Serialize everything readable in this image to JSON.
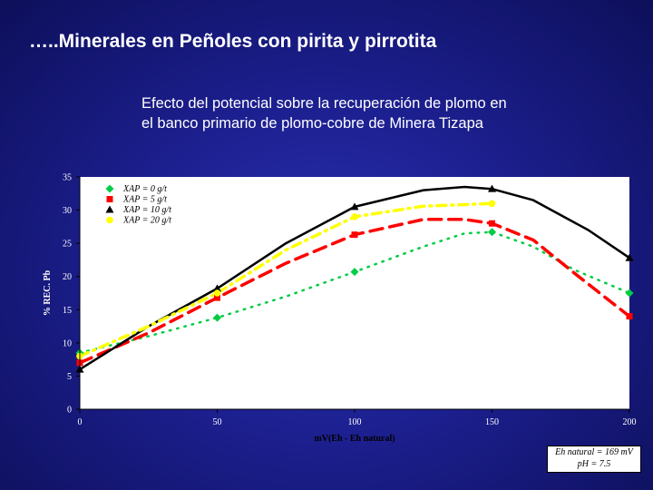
{
  "slide_title": "…..Minerales en Peñoles con pirita y pirrotita",
  "chart_data": {
    "type": "line",
    "title_lines": [
      "Efecto del potencial sobre la recuperación de plomo  en",
      "el banco primario de plomo-cobre de Minera Tizapa"
    ],
    "xlabel": "mV(Eh - Eh natural)",
    "ylabel": "% REC. Pb",
    "xlim": [
      0,
      200
    ],
    "ylim": [
      0,
      35
    ],
    "x_ticks": [
      0,
      50,
      100,
      150,
      200
    ],
    "y_ticks": [
      0,
      5,
      10,
      15,
      20,
      25,
      30,
      35
    ],
    "grid": false,
    "legend_position": "top-left",
    "series": [
      {
        "name": "XAP = 0 g/t",
        "color": "#00cc44",
        "marker": "diamond",
        "line_style": "dotted",
        "points": [
          [
            0,
            8.5
          ],
          [
            50,
            13.8
          ],
          [
            100,
            20.7
          ],
          [
            150,
            26.7
          ],
          [
            200,
            17.5
          ]
        ],
        "curve": [
          [
            0,
            8.5
          ],
          [
            25,
            11.0
          ],
          [
            50,
            13.8
          ],
          [
            75,
            17.0
          ],
          [
            100,
            20.7
          ],
          [
            125,
            24.5
          ],
          [
            140,
            26.5
          ],
          [
            150,
            26.7
          ],
          [
            165,
            24.5
          ],
          [
            180,
            21.0
          ],
          [
            200,
            17.5
          ]
        ]
      },
      {
        "name": "XAP = 5 g/t",
        "color": "#ff0000",
        "marker": "square",
        "line_style": "dashed",
        "points": [
          [
            0,
            7
          ],
          [
            50,
            16.8
          ],
          [
            100,
            26.3
          ],
          [
            150,
            28
          ],
          [
            200,
            14
          ]
        ],
        "curve": [
          [
            0,
            7
          ],
          [
            25,
            11.5
          ],
          [
            50,
            16.8
          ],
          [
            75,
            22.0
          ],
          [
            100,
            26.3
          ],
          [
            125,
            28.6
          ],
          [
            140,
            28.6
          ],
          [
            150,
            28
          ],
          [
            165,
            25.5
          ],
          [
            180,
            20.5
          ],
          [
            200,
            14
          ]
        ]
      },
      {
        "name": "XAP = 10 g/t",
        "color": "#000000",
        "marker": "triangle",
        "line_style": "solid",
        "points": [
          [
            0,
            6
          ],
          [
            50,
            18.2
          ],
          [
            100,
            30.5
          ],
          [
            150,
            33.2
          ],
          [
            200,
            22.8
          ]
        ],
        "curve": [
          [
            0,
            6
          ],
          [
            25,
            12.5
          ],
          [
            50,
            18.2
          ],
          [
            75,
            25.0
          ],
          [
            100,
            30.5
          ],
          [
            125,
            33.0
          ],
          [
            140,
            33.5
          ],
          [
            150,
            33.2
          ],
          [
            165,
            31.5
          ],
          [
            185,
            27.0
          ],
          [
            200,
            22.8
          ]
        ]
      },
      {
        "name": "XAP = 20 g/t",
        "color": "#ffff00",
        "marker": "circle",
        "line_style": "dash-dot",
        "points": [
          [
            0,
            8
          ],
          [
            50,
            17.5
          ],
          [
            100,
            29
          ],
          [
            150,
            31
          ]
        ],
        "curve": [
          [
            0,
            8
          ],
          [
            25,
            12.5
          ],
          [
            50,
            17.5
          ],
          [
            75,
            24.0
          ],
          [
            100,
            29
          ],
          [
            125,
            30.6
          ],
          [
            150,
            31
          ]
        ]
      }
    ],
    "annotation_lines": [
      "Eh natural = 169 mV",
      "pH = 7.5"
    ]
  }
}
